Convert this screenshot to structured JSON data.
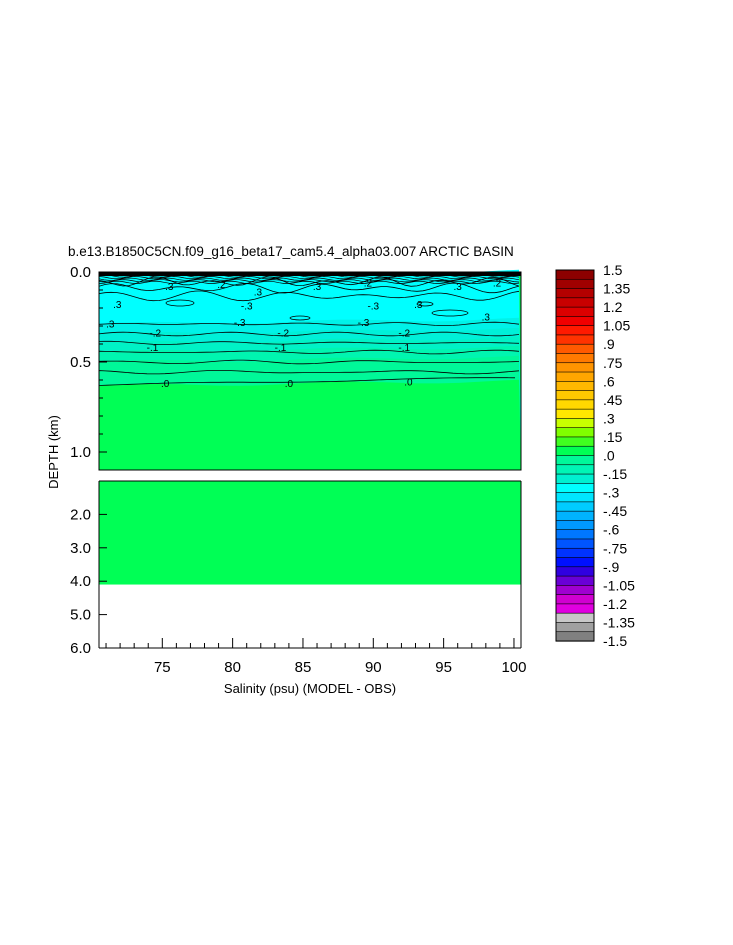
{
  "chart_data": {
    "type": "heatmap",
    "title": "b.e13.B1850C5CN.f09_g16_beta17_cam5.4_alpha03.007 ARCTIC BASIN",
    "xlabel": "Salinity (psu) (MODEL - OBS)",
    "ylabel": "DEPTH (km)",
    "x_ticks": [
      "75",
      "80",
      "85",
      "90",
      "95",
      "100"
    ],
    "x_range": [
      70.5,
      100.5
    ],
    "upper_panel": {
      "y_ticks": [
        "0.0",
        "0.5",
        "1.0"
      ],
      "y_range": [
        0.0,
        1.1
      ]
    },
    "lower_panel": {
      "y_ticks": [
        "2.0",
        "3.0",
        "4.0",
        "5.0",
        "6.0"
      ],
      "y_range": [
        1.0,
        6.0
      ],
      "data_bottom_depth": 4.1
    },
    "contour_labels": [
      {
        "text": ".3",
        "x": 75.5,
        "depth": 0.08
      },
      {
        "text": ".2",
        "x": 79.2,
        "depth": 0.07
      },
      {
        "text": ".3",
        "x": 81.8,
        "depth": 0.11
      },
      {
        "text": ".3",
        "x": 86.0,
        "depth": 0.08
      },
      {
        "text": "-.2",
        "x": 89.5,
        "depth": 0.06
      },
      {
        "text": ".3",
        "x": 96.0,
        "depth": 0.08
      },
      {
        "text": ".2",
        "x": 98.8,
        "depth": 0.06
      },
      {
        "text": ".3",
        "x": 71.8,
        "depth": 0.18
      },
      {
        "text": "-.3",
        "x": 81.0,
        "depth": 0.19
      },
      {
        "text": "-.3",
        "x": 90.0,
        "depth": 0.19
      },
      {
        "text": ".3",
        "x": 93.2,
        "depth": 0.18
      },
      {
        "text": ".3",
        "x": 98.0,
        "depth": 0.25
      },
      {
        "text": ".3",
        "x": 71.3,
        "depth": 0.29
      },
      {
        "text": "-.3",
        "x": 80.5,
        "depth": 0.28
      },
      {
        "text": "-.3",
        "x": 89.3,
        "depth": 0.28
      },
      {
        "text": "-.2",
        "x": 74.5,
        "depth": 0.34
      },
      {
        "text": "-.2",
        "x": 83.6,
        "depth": 0.34
      },
      {
        "text": "-.2",
        "x": 92.2,
        "depth": 0.34
      },
      {
        "text": "-.1",
        "x": 74.3,
        "depth": 0.42
      },
      {
        "text": "-.1",
        "x": 83.4,
        "depth": 0.42
      },
      {
        "text": "-.1",
        "x": 92.2,
        "depth": 0.42
      },
      {
        "text": ".0",
        "x": 75.2,
        "depth": 0.62
      },
      {
        "text": ".0",
        "x": 84.0,
        "depth": 0.62
      },
      {
        "text": ".0",
        "x": 92.5,
        "depth": 0.61
      }
    ],
    "colorbar": {
      "labels": [
        "1.5",
        "1.35",
        "1.2",
        "1.05",
        ".9",
        ".75",
        ".6",
        ".45",
        ".3",
        ".15",
        ".0",
        "-.15",
        "-.3",
        "-.45",
        "-.6",
        "-.75",
        "-.9",
        "-1.05",
        "-1.2",
        "-1.35",
        "-1.5"
      ],
      "range": [
        -1.5,
        1.5
      ],
      "step": 0.075
    },
    "colors": {
      "zero_fill": "#00ff55",
      "cyan_fill": "#00ffff",
      "contour_line": "#000000"
    }
  }
}
